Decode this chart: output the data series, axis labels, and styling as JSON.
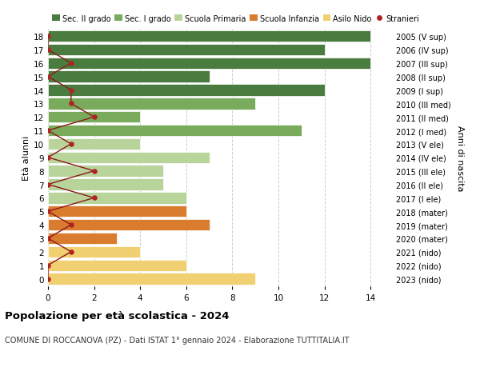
{
  "ages": [
    18,
    17,
    16,
    15,
    14,
    13,
    12,
    11,
    10,
    9,
    8,
    7,
    6,
    5,
    4,
    3,
    2,
    1,
    0
  ],
  "years": [
    "2005 (V sup)",
    "2006 (IV sup)",
    "2007 (III sup)",
    "2008 (II sup)",
    "2009 (I sup)",
    "2010 (III med)",
    "2011 (II med)",
    "2012 (I med)",
    "2013 (V ele)",
    "2014 (IV ele)",
    "2015 (III ele)",
    "2016 (II ele)",
    "2017 (I ele)",
    "2018 (mater)",
    "2019 (mater)",
    "2020 (mater)",
    "2021 (nido)",
    "2022 (nido)",
    "2023 (nido)"
  ],
  "bar_values": [
    14,
    12,
    14,
    7,
    12,
    9,
    4,
    11,
    4,
    7,
    5,
    5,
    6,
    6,
    7,
    3,
    4,
    6,
    9
  ],
  "bar_colors": [
    "#4a7c3f",
    "#4a7c3f",
    "#4a7c3f",
    "#4a7c3f",
    "#4a7c3f",
    "#7aab5c",
    "#7aab5c",
    "#7aab5c",
    "#b8d49a",
    "#b8d49a",
    "#b8d49a",
    "#b8d49a",
    "#b8d49a",
    "#d97c2e",
    "#d97c2e",
    "#d97c2e",
    "#f0d070",
    "#f0d070",
    "#f0d070"
  ],
  "stranieri_values": [
    0,
    0,
    1,
    0,
    1,
    1,
    2,
    0,
    1,
    0,
    2,
    0,
    2,
    0,
    1,
    0,
    1,
    0,
    0
  ],
  "stranieri_ages": [
    18,
    17,
    16,
    15,
    14,
    13,
    12,
    11,
    10,
    9,
    8,
    7,
    6,
    5,
    4,
    3,
    2,
    1,
    0
  ],
  "legend_labels": [
    "Sec. II grado",
    "Sec. I grado",
    "Scuola Primaria",
    "Scuola Infanzia",
    "Asilo Nido",
    "Stranieri"
  ],
  "legend_colors": [
    "#4a7c3f",
    "#7aab5c",
    "#b8d49a",
    "#d97c2e",
    "#f0d070",
    "#b22222"
  ],
  "ylabel_left": "Età alunni",
  "ylabel_right": "Anni di nascita",
  "title": "Popolazione per età scolastica - 2024",
  "subtitle": "COMUNE DI ROCCANOVA (PZ) - Dati ISTAT 1° gennaio 2024 - Elaborazione TUTTITALIA.IT",
  "xlim": [
    0,
    15
  ],
  "xticks": [
    0,
    2,
    4,
    6,
    8,
    10,
    12,
    14
  ],
  "bg_color": "#ffffff",
  "grid_color": "#cccccc",
  "stranieri_color": "#b22222",
  "stranieri_line_color": "#8b1a1a"
}
